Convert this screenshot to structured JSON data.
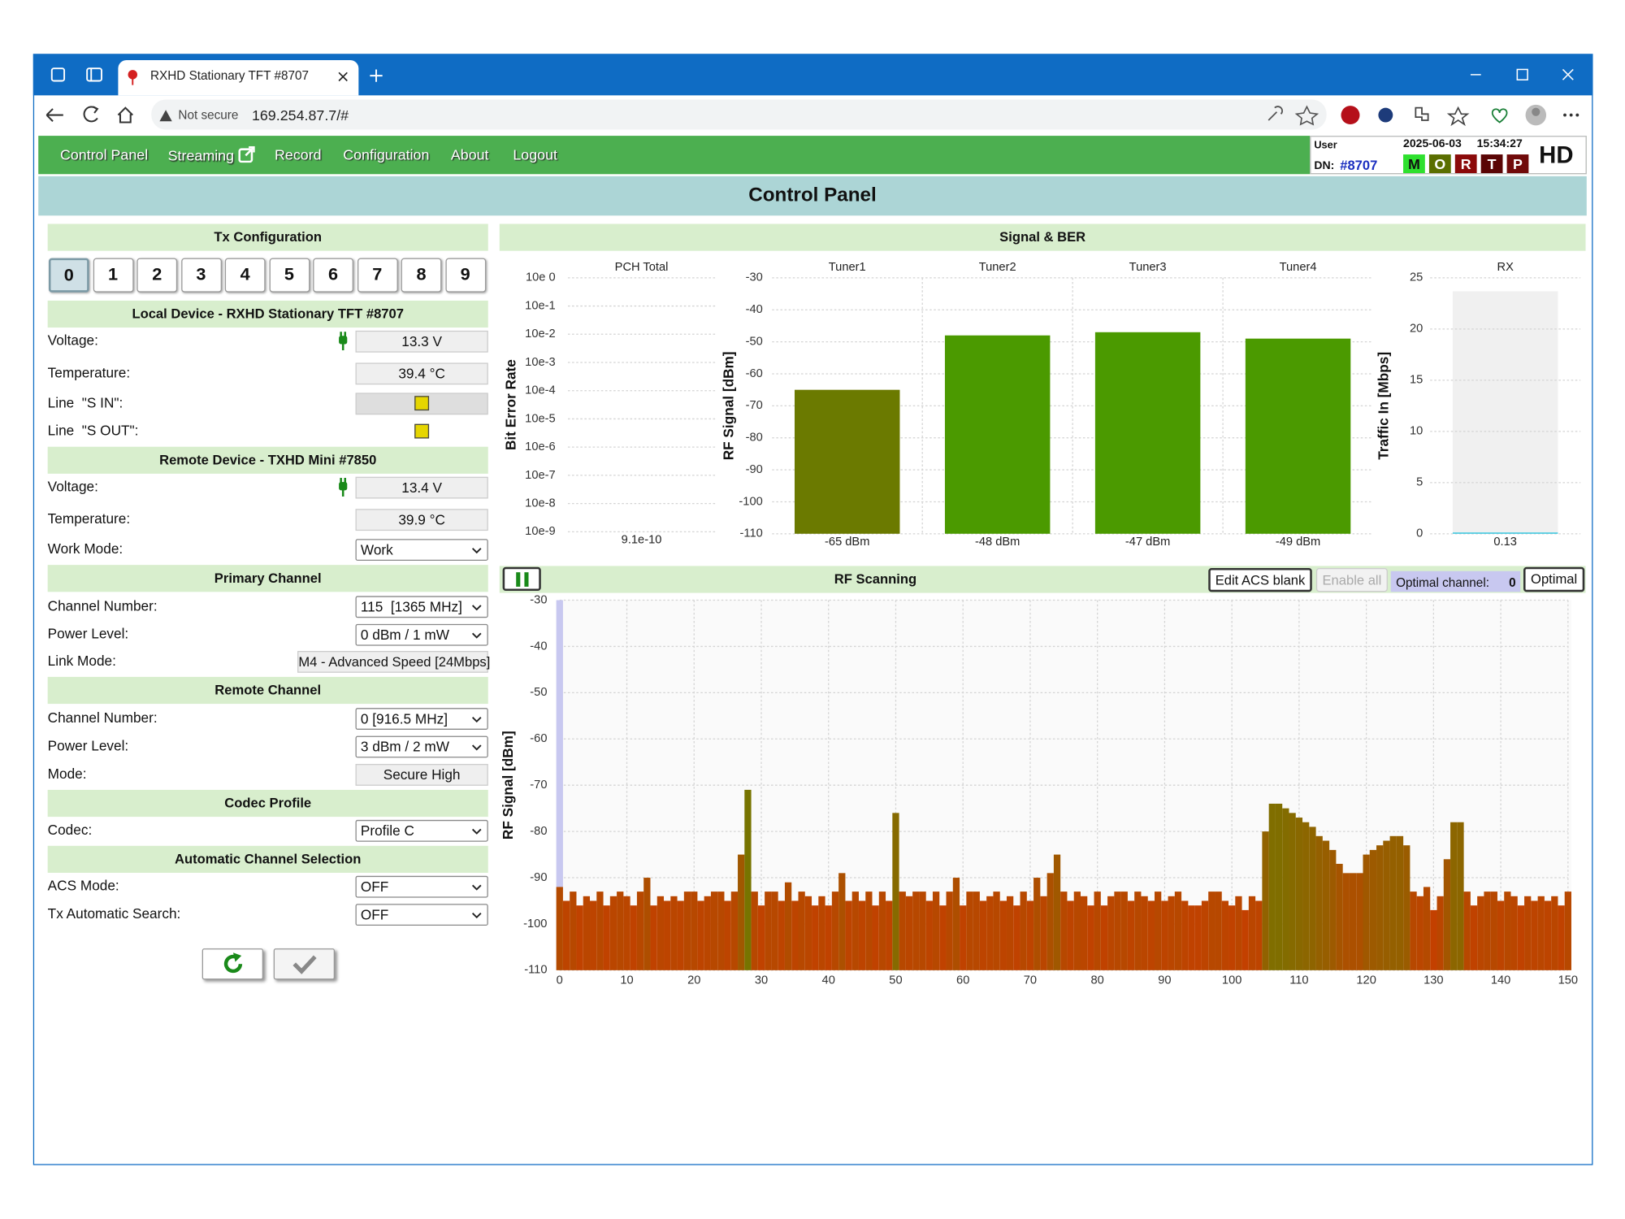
{
  "browser": {
    "tab_title": "RXHD Stationary TFT #8707",
    "security": "Not secure",
    "url": "169.254.87.7/#"
  },
  "nav": {
    "items": [
      "Control Panel",
      "Streaming",
      "Record",
      "Configuration",
      "About",
      "Logout"
    ],
    "user_label": "User",
    "dn_label": "DN:",
    "dn": "#8707",
    "date": "2025-06-03",
    "time": "15:34:27",
    "status": [
      "M",
      "O",
      "R",
      "T",
      "P"
    ],
    "status_colors": [
      "#2ee02e",
      "#5a6e00",
      "#8b0a0a",
      "#5a0505",
      "#700a0a"
    ],
    "model": "HD"
  },
  "title": "Control Panel",
  "tx": {
    "title": "Tx Configuration",
    "buttons": [
      "0",
      "1",
      "2",
      "3",
      "4",
      "5",
      "6",
      "7",
      "8",
      "9"
    ]
  },
  "sections": [
    {
      "title": "Local Device - RXHD Stationary TFT #8707",
      "rows": [
        {
          "label": "Voltage:",
          "value": "13.3 V"
        },
        {
          "label": "Temperature:",
          "value": "39.4 °C"
        },
        {
          "label": "Line  \"S IN\":"
        },
        {
          "label": "Line  \"S OUT\":"
        }
      ]
    },
    {
      "title": "Remote Device - TXHD Mini #7850",
      "rows": [
        {
          "label": "Voltage:",
          "value": "13.4 V"
        },
        {
          "label": "Temperature:",
          "value": "39.9 °C"
        },
        {
          "label": "Work Mode:",
          "value": "Work"
        }
      ]
    },
    {
      "title": "Primary Channel",
      "rows": [
        {
          "label": "Channel Number:",
          "value": "115  [1365 MHz]"
        },
        {
          "label": "Power Level:",
          "value": "0 dBm / 1 mW"
        },
        {
          "label": "Link Mode:",
          "value": "M4 - Advanced Speed [24Mbps]"
        }
      ]
    },
    {
      "title": "Remote Channel",
      "rows": [
        {
          "label": "Channel Number:",
          "value": "0 [916.5 MHz]"
        },
        {
          "label": "Power Level:",
          "value": "3 dBm / 2 mW"
        },
        {
          "label": "Mode:",
          "value": "Secure High"
        }
      ]
    },
    {
      "title": "Codec Profile",
      "rows": [
        {
          "label": "Codec:",
          "value": "Profile C"
        }
      ]
    },
    {
      "title": "Automatic Channel Selection",
      "rows": [
        {
          "label": "ACS Mode:",
          "value": "OFF"
        },
        {
          "label": "Tx Automatic Search:",
          "value": "OFF"
        }
      ]
    }
  ],
  "signal": {
    "title": "Signal & BER",
    "charts": [
      {
        "type": "bar",
        "y_label": "Bit Error Rate",
        "log_scale": true,
        "ylim": [
          1e-09,
          1
        ],
        "yticks": [
          {
            "value": 1,
            "label": "10e 0"
          },
          {
            "value": 0.1,
            "label": "10e-1"
          },
          {
            "value": 0.01,
            "label": "10e-2"
          },
          {
            "value": 0.001,
            "label": "10e-3"
          },
          {
            "value": 0.0001,
            "label": "10e-4"
          },
          {
            "value": 1e-05,
            "label": "10e-5"
          },
          {
            "value": 1e-06,
            "label": "10e-6"
          },
          {
            "value": 1e-07,
            "label": "10e-7"
          },
          {
            "value": 1e-08,
            "label": "10e-8"
          },
          {
            "value": 1e-09,
            "label": "10e-9"
          }
        ],
        "categories": [
          "PCH Total"
        ],
        "values": [
          9.1e-10
        ],
        "value_labels": [
          "9.1e-10"
        ],
        "colors": [
          "#4b9a00"
        ],
        "grid": true
      },
      {
        "type": "bar",
        "y_label": "RF Signal [dBm]",
        "ylim": [
          -110,
          -30
        ],
        "yticks": [
          -30,
          -40,
          -50,
          -60,
          -70,
          -80,
          -90,
          -100,
          -110
        ],
        "categories": [
          "Tuner1",
          "Tuner2",
          "Tuner3",
          "Tuner4"
        ],
        "values": [
          -65,
          -48,
          -47,
          -49
        ],
        "value_labels": [
          "-65 dBm",
          "-48 dBm",
          "-47 dBm",
          "-49 dBm"
        ],
        "colors": [
          "#6b7a00",
          "#4b9a00",
          "#4b9a00",
          "#4b9a00"
        ],
        "grid": true
      },
      {
        "type": "bar",
        "y_label": "Traffic In [Mbps]",
        "ylim": [
          0,
          25
        ],
        "yticks": [
          0,
          5,
          10,
          15,
          20,
          25
        ],
        "categories": [
          "RX"
        ],
        "values": [
          0.13
        ],
        "value_labels": [
          "0.13"
        ],
        "colors": [
          "#3cc8e0"
        ],
        "grid": true
      }
    ]
  },
  "scan": {
    "title": "RF Scanning",
    "buttons": [
      "Edit ACS blank",
      "Enable all"
    ],
    "optimal_label": "Optimal channel:",
    "optimal": 0,
    "optimal_button": "Optimal",
    "chart": {
      "type": "bar",
      "y_label": "RF Signal [dBm]",
      "xlim": [
        0,
        150
      ],
      "xticks": [
        0,
        10,
        20,
        30,
        40,
        50,
        60,
        70,
        80,
        90,
        100,
        110,
        120,
        130,
        140,
        150
      ],
      "ylim": [
        -110,
        -30
      ],
      "yticks": [
        -30,
        -40,
        -50,
        -60,
        -70,
        -80,
        -90,
        -100,
        -110
      ],
      "grid": true,
      "color_low": "#c83c00",
      "color_high": "#6b7d00",
      "highlight_color": "#c8c8f0",
      "x": [
        0,
        1,
        2,
        3,
        4,
        5,
        6,
        7,
        8,
        9,
        10,
        11,
        12,
        13,
        14,
        15,
        16,
        17,
        18,
        19,
        20,
        21,
        22,
        23,
        24,
        25,
        26,
        27,
        28,
        29,
        30,
        31,
        32,
        33,
        34,
        35,
        36,
        37,
        38,
        39,
        40,
        41,
        42,
        43,
        44,
        45,
        46,
        47,
        48,
        49,
        50,
        51,
        52,
        53,
        54,
        55,
        56,
        57,
        58,
        59,
        60,
        61,
        62,
        63,
        64,
        65,
        66,
        67,
        68,
        69,
        70,
        71,
        72,
        73,
        74,
        75,
        76,
        77,
        78,
        79,
        80,
        81,
        82,
        83,
        84,
        85,
        86,
        87,
        88,
        89,
        90,
        91,
        92,
        93,
        94,
        95,
        96,
        97,
        98,
        99,
        100,
        101,
        102,
        103,
        104,
        105,
        106,
        107,
        108,
        109,
        110,
        111,
        112,
        113,
        114,
        115,
        116,
        117,
        118,
        119,
        120,
        121,
        122,
        123,
        124,
        125,
        126,
        127,
        128,
        129,
        130,
        131,
        132,
        133,
        134,
        135,
        136,
        137,
        138,
        139,
        140,
        141,
        142,
        143,
        144,
        145,
        146,
        147,
        148,
        149,
        150
      ],
      "values": [
        -92,
        -95,
        -93,
        -96,
        -94,
        -95,
        -93,
        -96,
        -94,
        -93,
        -94,
        -96,
        -93,
        -90,
        -96,
        -94,
        -95,
        -94,
        -95,
        -93,
        -93,
        -95,
        -94,
        -93,
        -93,
        -95,
        -93,
        -85,
        -71,
        -93,
        -96,
        -93,
        -93,
        -95,
        -91,
        -95,
        -93,
        -94,
        -96,
        -94,
        -96,
        -93,
        -89,
        -95,
        -93,
        -95,
        -93,
        -96,
        -93,
        -95,
        -76,
        -93,
        -94,
        -93,
        -93,
        -95,
        -93,
        -96,
        -93,
        -90,
        -96,
        -93,
        -93,
        -95,
        -94,
        -93,
        -95,
        -94,
        -96,
        -93,
        -95,
        -90,
        -94,
        -89,
        -85,
        -93,
        -95,
        -93,
        -94,
        -96,
        -93,
        -96,
        -94,
        -93,
        -93,
        -95,
        -93,
        -94,
        -95,
        -93,
        -95,
        -94,
        -93,
        -95,
        -96,
        -96,
        -95,
        -93,
        -93,
        -95,
        -96,
        -94,
        -97,
        -94,
        -95,
        -80,
        -74,
        -74,
        -75,
        -76,
        -77,
        -78,
        -79,
        -81,
        -82,
        -84,
        -87,
        -89,
        -89,
        -89,
        -85,
        -84,
        -83,
        -82,
        -81,
        -81,
        -83,
        -93,
        -94,
        -92,
        -97,
        -94,
        -86,
        -78,
        -78,
        -93,
        -96,
        -94,
        -93,
        -93,
        -95,
        -93,
        -94,
        -96,
        -94,
        -95,
        -94,
        -95,
        -94,
        -96,
        -93
      ]
    }
  }
}
